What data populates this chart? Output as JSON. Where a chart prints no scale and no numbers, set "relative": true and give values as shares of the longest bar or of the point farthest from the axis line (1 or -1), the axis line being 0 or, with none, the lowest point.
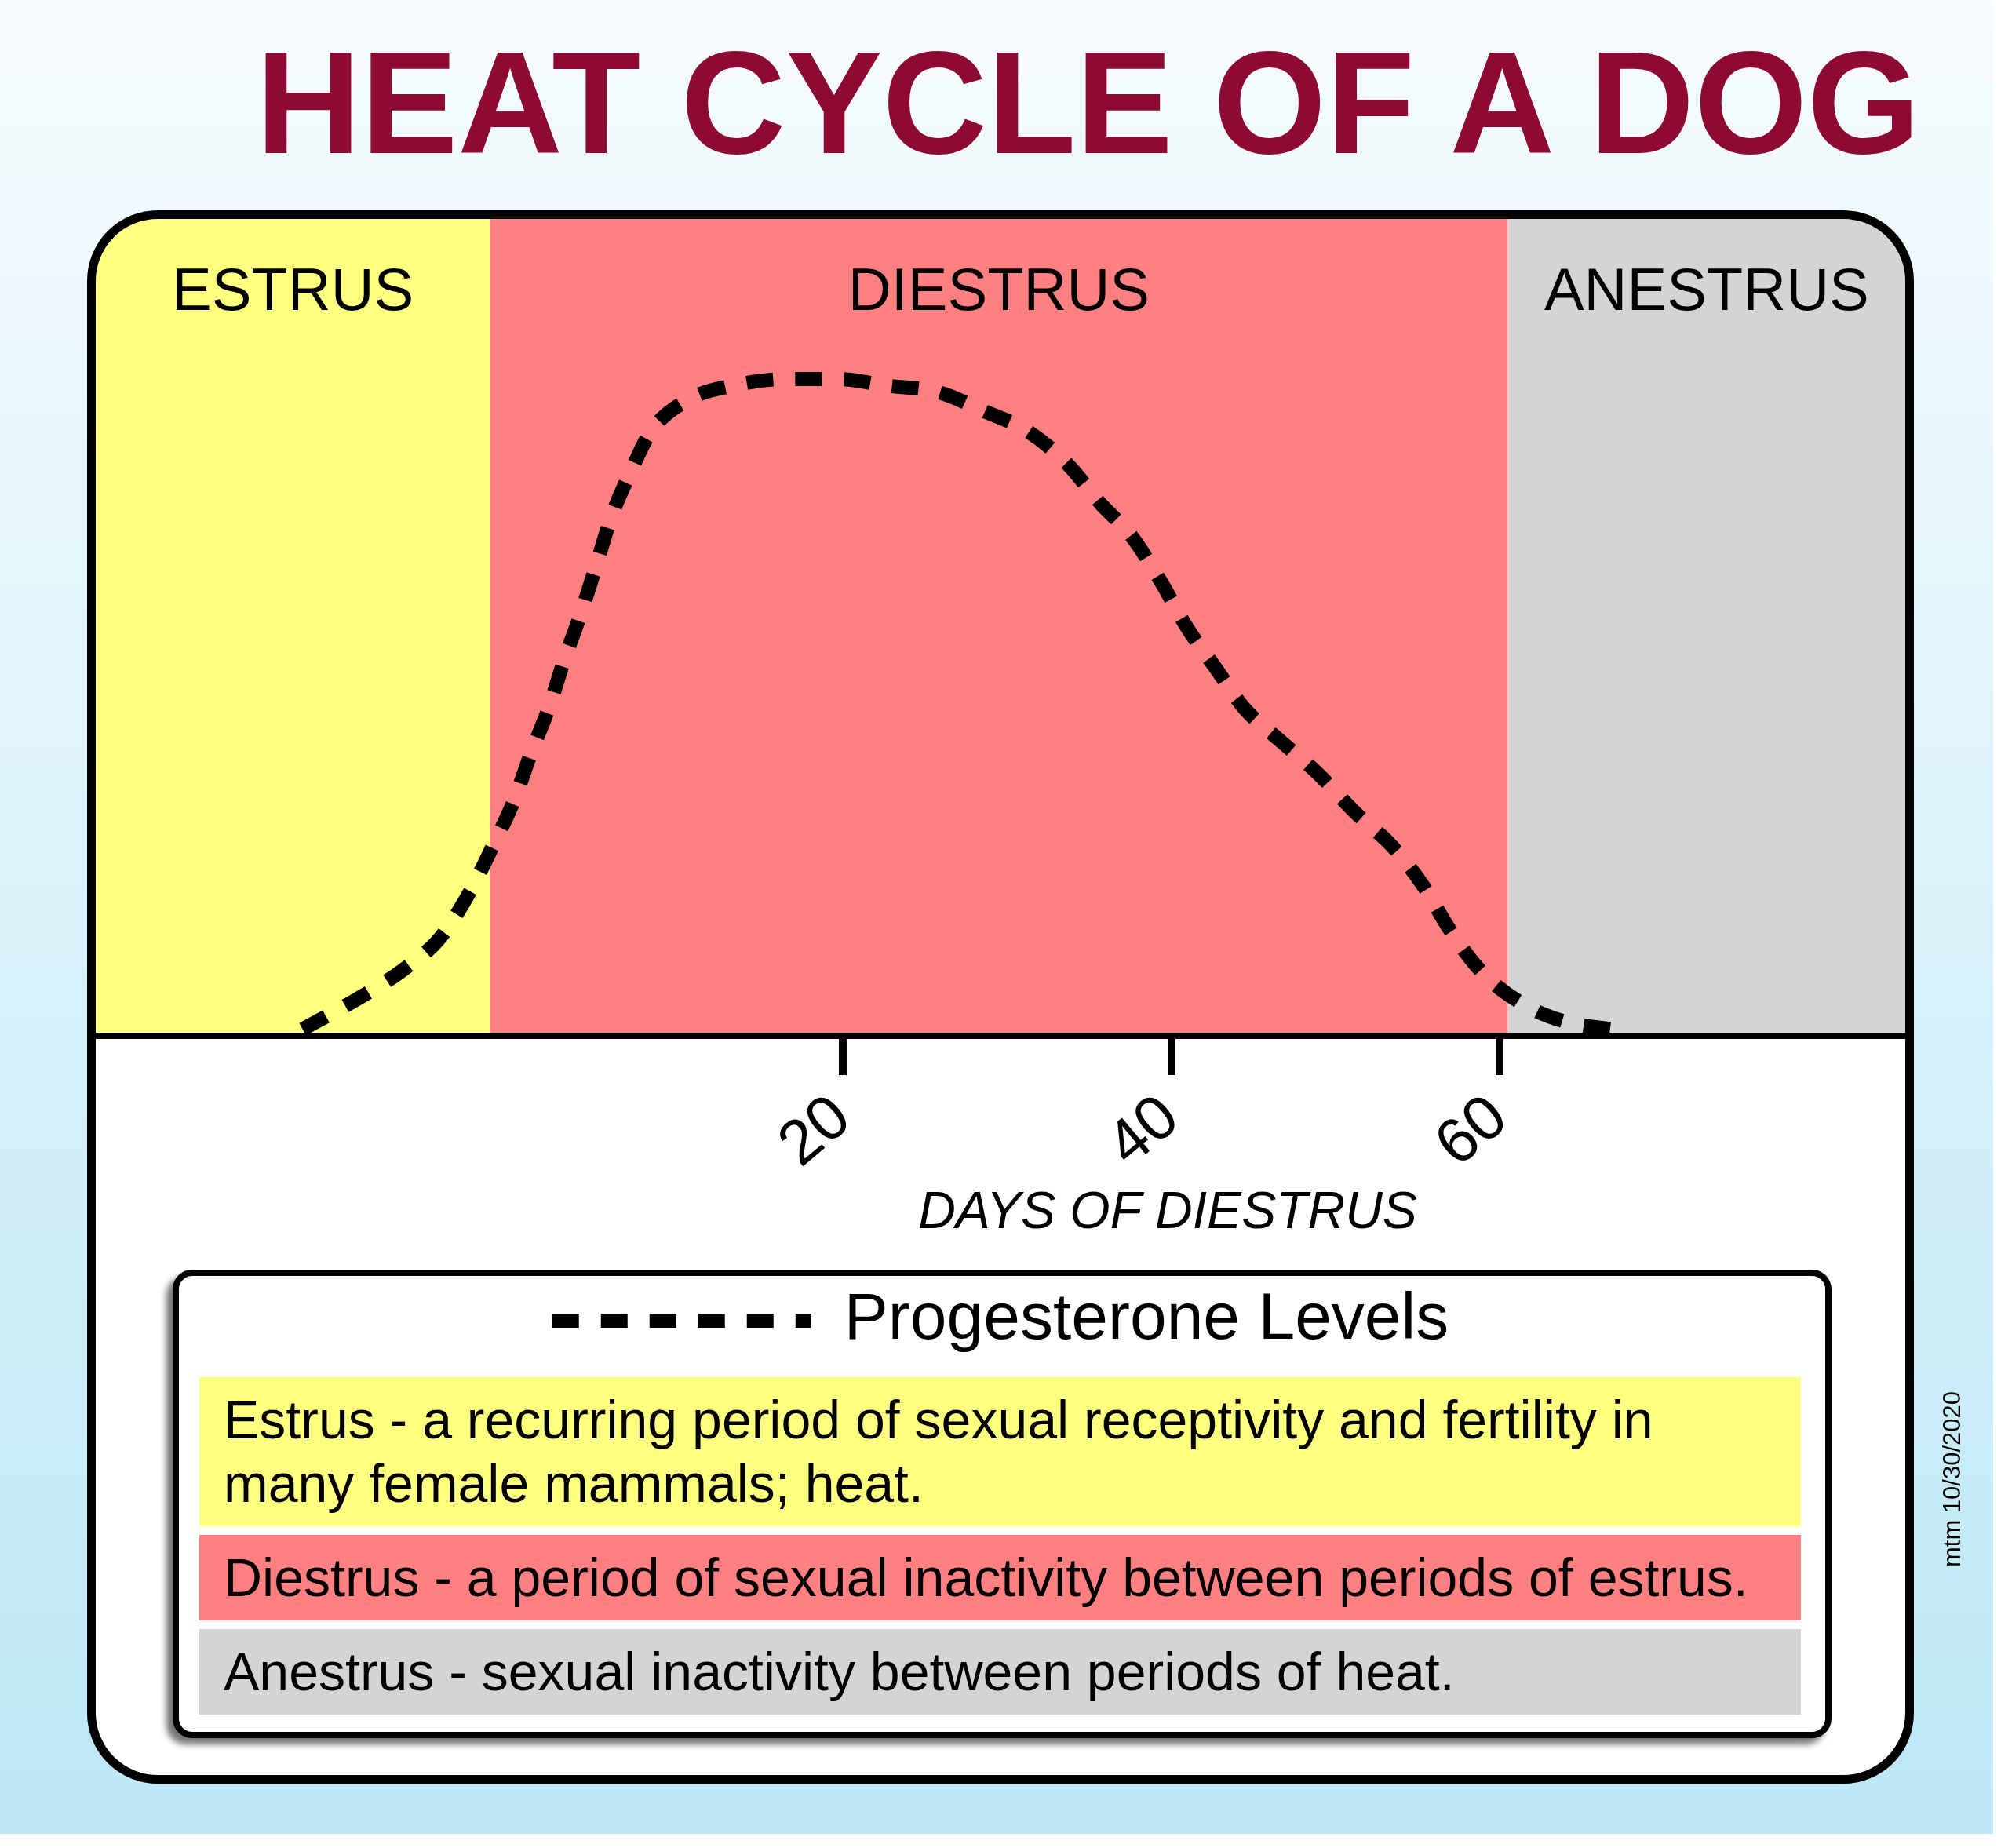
{
  "chart_data": {
    "type": "line",
    "title": "HEAT CYCLE OF A DOG",
    "xlabel": "DAYS OF DIESTRUS",
    "relative": true,
    "x": [
      -12.9,
      -9.3,
      -6.8,
      -4.5,
      -2.7,
      -1.3,
      0,
      1,
      2.1,
      3,
      4,
      4.9,
      5.9,
      7.1,
      8.3,
      10.7,
      13.3,
      16.6,
      19.7,
      22.7,
      25.8,
      28.7,
      31.3,
      33.7,
      35.7,
      37.6,
      39.4,
      41,
      42.7,
      44.4,
      46.6,
      48.9,
      51.2,
      53.4,
      55.3,
      57,
      58.8,
      61.3,
      64.2,
      66.9
    ],
    "series": [
      {
        "name": "Progesterone Levels",
        "color": "#000000",
        "values": [
          0.01,
          0.06,
          0.1,
          0.15,
          0.22,
          0.29,
          0.36,
          0.43,
          0.5,
          0.57,
          0.64,
          0.71,
          0.79,
          0.86,
          0.92,
          0.97,
          0.99,
          1,
          1,
          0.99,
          0.98,
          0.95,
          0.92,
          0.87,
          0.81,
          0.76,
          0.69,
          0.62,
          0.56,
          0.5,
          0.45,
          0.4,
          0.34,
          0.29,
          0.23,
          0.16,
          0.1,
          0.05,
          0.02,
          0.01
        ]
      }
    ],
    "xlim": [
      -25.5,
      84.7
    ],
    "xticks": [
      20,
      40,
      60
    ],
    "bands": [
      {
        "axis": "x",
        "from": -25.5,
        "to": -1.5,
        "label": "ESTRUS",
        "color": "#ffff80"
      },
      {
        "axis": "x",
        "from": -1.5,
        "to": 60.5,
        "label": "DIESTRUS",
        "color": "#ff8080"
      },
      {
        "axis": "x",
        "from": 60.5,
        "to": 84.7,
        "label": "ANESTRUS",
        "color": "#d4d4d4"
      }
    ],
    "annotations": [
      "Estrus - a recurring period of sexual receptivity and fertility in many female mammals; heat.",
      "Diestrus - a period of sexual inactivity between periods of estrus.",
      "Anestrus - sexual inactivity between periods of heat.",
      "mtm 10/30/2020"
    ],
    "legend": "bottom",
    "grid": false,
    "marker": "none",
    "line_style": "dashed"
  }
}
